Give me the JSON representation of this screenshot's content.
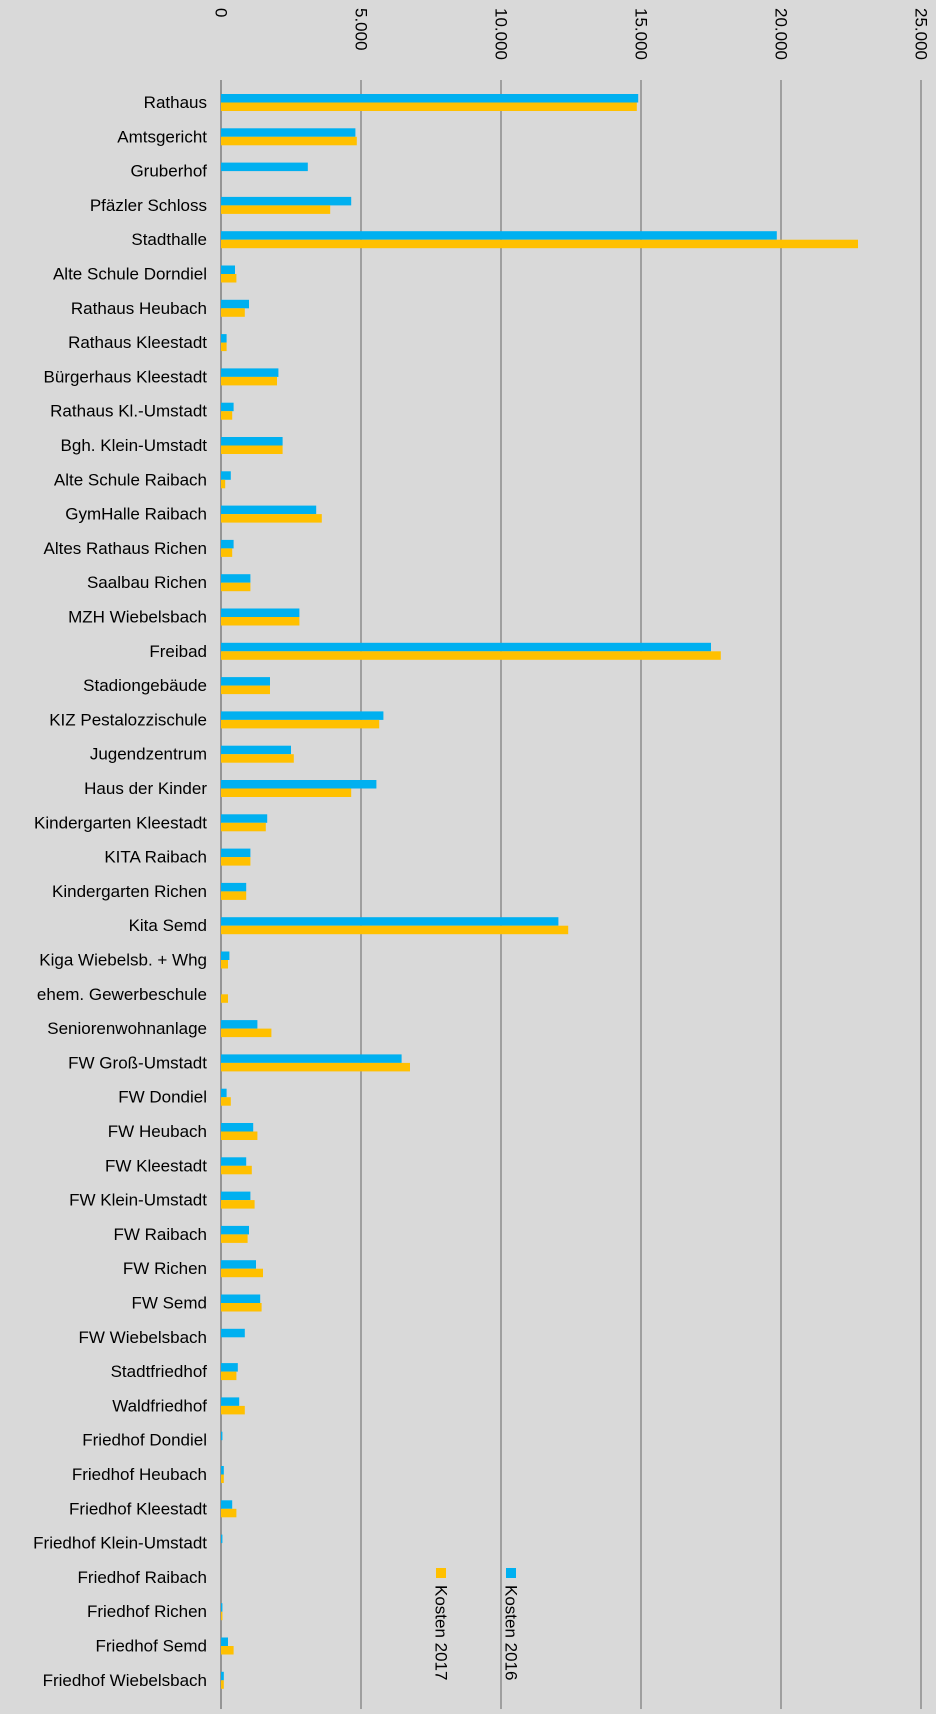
{
  "chart_data": {
    "type": "bar",
    "orientation": "horizontal",
    "title": "",
    "xlabel": "",
    "ylabel": "",
    "xlim": [
      0,
      25000
    ],
    "ticks": [
      0,
      5000,
      10000,
      15000,
      20000,
      25000
    ],
    "tick_labels": [
      "0",
      "5.000",
      "10.000",
      "15.000",
      "20.000",
      "25.000"
    ],
    "grid": true,
    "legend_position": "inside, lower middle",
    "categories": [
      "Rathaus",
      "Amtsgericht",
      "Gruberhof",
      "Pfäzler Schloss",
      "Stadthalle",
      "Alte Schule Dorndiel",
      "Rathaus Heubach",
      "Rathaus Kleestadt",
      "Bürgerhaus Kleestadt",
      "Rathaus Kl.-Umstadt",
      "Bgh. Klein-Umstadt",
      "Alte Schule Raibach",
      "GymHalle Raibach",
      "Altes Rathaus Richen",
      "Saalbau Richen",
      "MZH Wiebelsbach",
      "Freibad",
      "Stadiongebäude",
      "KIZ Pestalozzischule",
      "Jugendzentrum",
      "Haus der Kinder",
      "Kindergarten Kleestadt",
      "KITA Raibach",
      "Kindergarten Richen",
      "Kita Semd",
      "Kiga Wiebelsb. + Whg",
      "ehem. Gewerbeschule",
      "Seniorenwohnanlage",
      "FW Groß-Umstadt",
      "FW Dondiel",
      "FW Heubach",
      "FW Kleestadt",
      "FW Klein-Umstadt",
      "FW Raibach",
      "FW Richen",
      "FW Semd",
      "FW Wiebelsbach",
      "Stadtfriedhof",
      "Waldfriedhof",
      "Friedhof Dondiel",
      "Friedhof Heubach",
      "Friedhof Kleestadt",
      "Friedhof Klein-Umstadt",
      "Friedhof Raibach",
      "Friedhof Richen",
      "Friedhof Semd",
      "Friedhof Wiebelsbach"
    ],
    "series": [
      {
        "name": "Kosten 2016",
        "color": "#00b0f0",
        "values": [
          14900,
          4800,
          3100,
          4650,
          19850,
          500,
          1000,
          200,
          2050,
          450,
          2200,
          350,
          3400,
          450,
          1050,
          2800,
          17500,
          1750,
          5800,
          2500,
          5550,
          1650,
          1050,
          900,
          12050,
          300,
          0,
          1300,
          6450,
          200,
          1150,
          900,
          1050,
          1000,
          1250,
          1400,
          850,
          600,
          650,
          50,
          100,
          400,
          50,
          0,
          50,
          250,
          100
        ]
      },
      {
        "name": "Kosten 2017",
        "color": "#ffc000",
        "values": [
          14850,
          4850,
          0,
          3900,
          22750,
          550,
          850,
          200,
          2000,
          400,
          2200,
          150,
          3600,
          400,
          1050,
          2800,
          17850,
          1750,
          5650,
          2600,
          4650,
          1600,
          1050,
          900,
          12400,
          250,
          250,
          1800,
          6750,
          350,
          1300,
          1100,
          1200,
          950,
          1500,
          1450,
          0,
          550,
          850,
          0,
          100,
          550,
          0,
          0,
          50,
          450,
          100
        ]
      }
    ]
  }
}
